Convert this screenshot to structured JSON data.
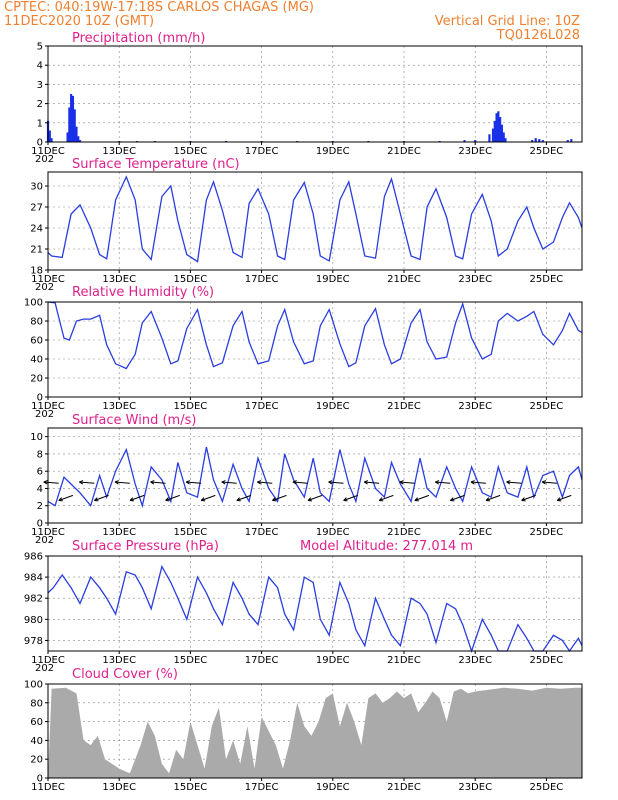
{
  "header": {
    "line1_left": "CPTEC:   040:19W-17:18S   CARLOS CHAGAS (MG)",
    "line2_left": "11DEC2020 10Z (GMT)",
    "line2_right": "Vertical Grid Line: 10Z",
    "line3_right": "TQ0126L028"
  },
  "x_axis": {
    "tick_labels": [
      "11DEC",
      "13DEC",
      "15DEC",
      "17DEC",
      "19DEC",
      "21DEC",
      "23DEC",
      "25DEC"
    ],
    "tick_days": [
      0,
      2,
      4,
      6,
      8,
      10,
      12,
      14
    ],
    "range_days": [
      0,
      15
    ],
    "year_fragment": "202"
  },
  "colors": {
    "line": "#2a3ee0",
    "bar": "#1a30e8",
    "cloud": "#aaaaaa",
    "title": "#e0208c",
    "header": "#f08030"
  },
  "chart_data": [
    {
      "type": "bar",
      "title": "Precipitation (mm/h)",
      "ylim": [
        0,
        5
      ],
      "yticks": [
        0,
        1,
        2,
        3,
        4,
        5
      ],
      "x": [
        0.0,
        0.05,
        0.1,
        0.55,
        0.6,
        0.65,
        0.7,
        0.75,
        0.8,
        0.85,
        0.9,
        2.0,
        2.5,
        3.0,
        4.0,
        5.0,
        6.0,
        7.0,
        8.0,
        9.0,
        10.0,
        11.0,
        11.7,
        12.0,
        12.4,
        12.5,
        12.55,
        12.6,
        12.65,
        12.7,
        12.75,
        12.8,
        12.85,
        13.6,
        13.7,
        13.8,
        13.9,
        14.6,
        14.7
      ],
      "values": [
        1.1,
        0.6,
        0.2,
        0.5,
        1.8,
        2.5,
        2.4,
        1.7,
        0.8,
        0.3,
        0.1,
        0.05,
        0.05,
        0.05,
        0.05,
        0.05,
        0.05,
        0.05,
        0.05,
        0.05,
        0.05,
        0.05,
        0.1,
        0.1,
        0.4,
        0.7,
        1.1,
        1.5,
        1.6,
        1.3,
        0.9,
        0.5,
        0.2,
        0.1,
        0.2,
        0.15,
        0.1,
        0.1,
        0.15
      ]
    },
    {
      "type": "line",
      "title": "Surface Temperature (nC)",
      "ylim": [
        18,
        32
      ],
      "yticks": [
        18,
        21,
        24,
        27,
        30
      ],
      "x": [
        0.0,
        0.1,
        0.4,
        0.65,
        0.9,
        1.2,
        1.45,
        1.65,
        1.9,
        2.2,
        2.45,
        2.65,
        2.9,
        3.2,
        3.45,
        3.65,
        3.9,
        4.2,
        4.45,
        4.65,
        4.9,
        5.2,
        5.45,
        5.65,
        5.9,
        6.2,
        6.45,
        6.65,
        6.9,
        7.2,
        7.45,
        7.65,
        7.9,
        8.2,
        8.45,
        8.65,
        8.9,
        9.2,
        9.45,
        9.65,
        9.9,
        10.2,
        10.45,
        10.65,
        10.9,
        11.2,
        11.45,
        11.65,
        11.9,
        12.2,
        12.45,
        12.65,
        12.9,
        13.2,
        13.45,
        13.65,
        13.9,
        14.2,
        14.45,
        14.65,
        14.9,
        15.0
      ],
      "values": [
        20.5,
        20.0,
        19.8,
        26.0,
        27.3,
        24.0,
        20.2,
        19.6,
        28.0,
        31.3,
        28.0,
        21.0,
        19.5,
        28.5,
        30.0,
        25.0,
        20.2,
        19.2,
        28.0,
        30.6,
        26.5,
        20.5,
        19.8,
        27.5,
        29.6,
        26.0,
        20.0,
        19.5,
        28.0,
        30.5,
        26.0,
        20.0,
        19.3,
        28.0,
        30.6,
        26.0,
        20.0,
        19.7,
        28.5,
        31.0,
        26.0,
        20.0,
        19.5,
        27.0,
        29.6,
        25.5,
        20.0,
        19.6,
        26.0,
        28.8,
        25.0,
        20.0,
        21.0,
        25.0,
        27.0,
        24.0,
        21.0,
        22.0,
        25.5,
        27.6,
        25.5,
        24.0
      ]
    },
    {
      "type": "line",
      "title": "Relative Humidity (%)",
      "ylim": [
        0,
        100
      ],
      "yticks": [
        0,
        20,
        40,
        60,
        80,
        100
      ],
      "x": [
        0.0,
        0.2,
        0.45,
        0.6,
        0.8,
        1.0,
        1.2,
        1.45,
        1.65,
        1.9,
        2.2,
        2.45,
        2.65,
        2.9,
        3.2,
        3.45,
        3.65,
        3.9,
        4.2,
        4.45,
        4.65,
        4.9,
        5.2,
        5.45,
        5.65,
        5.9,
        6.2,
        6.45,
        6.65,
        6.9,
        7.2,
        7.45,
        7.65,
        7.9,
        8.2,
        8.45,
        8.65,
        8.9,
        9.2,
        9.45,
        9.65,
        9.9,
        10.2,
        10.45,
        10.65,
        10.9,
        11.2,
        11.45,
        11.65,
        11.9,
        12.2,
        12.45,
        12.65,
        12.9,
        13.2,
        13.45,
        13.65,
        13.9,
        14.2,
        14.45,
        14.65,
        14.9,
        15.0
      ],
      "values": [
        100,
        99,
        62,
        60,
        80,
        82,
        82,
        86,
        55,
        35,
        30,
        45,
        78,
        90,
        62,
        35,
        38,
        72,
        92,
        55,
        32,
        36,
        75,
        90,
        58,
        35,
        38,
        75,
        92,
        58,
        35,
        38,
        75,
        92,
        56,
        32,
        36,
        75,
        93,
        55,
        35,
        40,
        78,
        92,
        58,
        40,
        42,
        78,
        98,
        62,
        40,
        45,
        80,
        88,
        80,
        85,
        90,
        66,
        55,
        70,
        88,
        70,
        68
      ]
    },
    {
      "type": "line",
      "title": "Surface Wind (m/s)",
      "ylim": [
        0,
        11
      ],
      "yticks": [
        0,
        2,
        4,
        6,
        8,
        10
      ],
      "x": [
        0.0,
        0.2,
        0.45,
        0.65,
        0.9,
        1.2,
        1.45,
        1.65,
        1.9,
        2.2,
        2.45,
        2.65,
        2.9,
        3.2,
        3.45,
        3.65,
        3.9,
        4.2,
        4.45,
        4.65,
        4.9,
        5.2,
        5.45,
        5.65,
        5.9,
        6.2,
        6.45,
        6.65,
        6.9,
        7.2,
        7.45,
        7.65,
        7.9,
        8.2,
        8.45,
        8.65,
        8.9,
        9.2,
        9.45,
        9.65,
        9.9,
        10.2,
        10.45,
        10.65,
        10.9,
        11.2,
        11.45,
        11.65,
        11.9,
        12.2,
        12.45,
        12.65,
        12.9,
        13.2,
        13.45,
        13.65,
        13.9,
        14.2,
        14.45,
        14.65,
        14.9,
        15.0
      ],
      "values": [
        2.5,
        2.0,
        5.3,
        4.5,
        3.5,
        2.0,
        5.5,
        3.0,
        6.0,
        8.5,
        4.5,
        2.0,
        6.5,
        5.0,
        2.5,
        7.0,
        3.5,
        3.0,
        8.8,
        5.0,
        2.5,
        6.8,
        4.0,
        2.5,
        7.5,
        4.0,
        2.5,
        8.0,
        5.0,
        3.0,
        7.5,
        3.5,
        2.5,
        8.5,
        4.5,
        2.5,
        7.5,
        4.0,
        3.0,
        7.0,
        4.5,
        2.5,
        7.5,
        4.0,
        3.0,
        6.5,
        4.0,
        2.5,
        6.5,
        3.5,
        3.0,
        6.5,
        3.5,
        3.0,
        6.5,
        3.0,
        5.5,
        6.0,
        3.0,
        5.5,
        6.5,
        5.0
      ]
    },
    {
      "type": "line",
      "title": "Surface Pressure (hPa)",
      "annotation": "Model Altitude: 277.014 m",
      "ylim": [
        977,
        986
      ],
      "yticks": [
        978,
        980,
        982,
        984,
        986
      ],
      "x": [
        0.0,
        0.15,
        0.4,
        0.65,
        0.9,
        1.2,
        1.45,
        1.65,
        1.9,
        2.2,
        2.45,
        2.65,
        2.9,
        3.2,
        3.45,
        3.65,
        3.9,
        4.2,
        4.45,
        4.65,
        4.9,
        5.2,
        5.45,
        5.65,
        5.9,
        6.2,
        6.45,
        6.65,
        6.9,
        7.2,
        7.45,
        7.65,
        7.9,
        8.2,
        8.45,
        8.65,
        8.9,
        9.2,
        9.45,
        9.65,
        9.9,
        10.2,
        10.45,
        10.65,
        10.9,
        11.2,
        11.45,
        11.65,
        11.9,
        12.2,
        12.45,
        12.65,
        12.9,
        13.2,
        13.45,
        13.65,
        13.9,
        14.2,
        14.45,
        14.65,
        14.9,
        15.0
      ],
      "values": [
        982.5,
        983.0,
        984.2,
        983.0,
        981.5,
        984.0,
        983.0,
        982.0,
        980.5,
        984.5,
        984.2,
        983.0,
        981.0,
        985.0,
        983.5,
        982.0,
        980.0,
        984.0,
        982.5,
        981.0,
        979.5,
        983.5,
        982.0,
        980.5,
        979.5,
        984.0,
        983.0,
        980.5,
        979.0,
        984.0,
        983.5,
        980.0,
        978.5,
        983.5,
        981.5,
        979.0,
        977.5,
        982.0,
        980.0,
        978.5,
        977.5,
        982.0,
        981.5,
        980.5,
        977.8,
        981.5,
        981.0,
        979.5,
        977.0,
        980.0,
        978.5,
        977.0,
        976.8,
        979.5,
        978.2,
        977.0,
        976.8,
        978.5,
        978.0,
        977.0,
        978.2,
        977.5
      ]
    },
    {
      "type": "area",
      "title": "Cloud Cover (%)",
      "ylim": [
        0,
        100
      ],
      "yticks": [
        0,
        20,
        40,
        60,
        80,
        100
      ],
      "x": [
        0.0,
        0.1,
        0.5,
        0.8,
        1.0,
        1.2,
        1.4,
        1.6,
        1.8,
        2.0,
        2.3,
        2.6,
        2.8,
        3.0,
        3.2,
        3.4,
        3.6,
        3.8,
        4.0,
        4.2,
        4.4,
        4.6,
        4.8,
        5.0,
        5.2,
        5.4,
        5.6,
        5.8,
        6.0,
        6.2,
        6.4,
        6.6,
        6.8,
        7.0,
        7.2,
        7.4,
        7.6,
        7.8,
        8.0,
        8.2,
        8.4,
        8.6,
        8.8,
        9.0,
        9.2,
        9.4,
        9.6,
        9.8,
        10.0,
        10.2,
        10.4,
        10.6,
        10.8,
        11.0,
        11.2,
        11.4,
        11.6,
        11.8,
        12.0,
        12.4,
        12.8,
        13.2,
        13.6,
        14.0,
        14.4,
        14.8,
        15.0
      ],
      "values": [
        0,
        95,
        96,
        90,
        40,
        35,
        45,
        20,
        15,
        10,
        5,
        35,
        60,
        45,
        15,
        5,
        30,
        20,
        60,
        35,
        10,
        55,
        75,
        20,
        40,
        15,
        55,
        10,
        65,
        50,
        35,
        10,
        40,
        80,
        55,
        45,
        60,
        85,
        90,
        55,
        80,
        60,
        35,
        85,
        90,
        80,
        85,
        92,
        85,
        90,
        70,
        80,
        92,
        85,
        60,
        92,
        95,
        90,
        92,
        94,
        96,
        95,
        93,
        96,
        95,
        96,
        96
      ]
    }
  ],
  "panels": {
    "wind_arrows_days": [
      0.3,
      0.7,
      1.3,
      1.7,
      2.3,
      2.7,
      3.3,
      3.7,
      4.3,
      4.7,
      5.3,
      5.7,
      6.3,
      6.7,
      7.3,
      7.7,
      8.3,
      8.7,
      9.3,
      9.7,
      10.3,
      10.7,
      11.3,
      11.7,
      12.3,
      12.7,
      13.3,
      13.7,
      14.3,
      14.7
    ]
  }
}
